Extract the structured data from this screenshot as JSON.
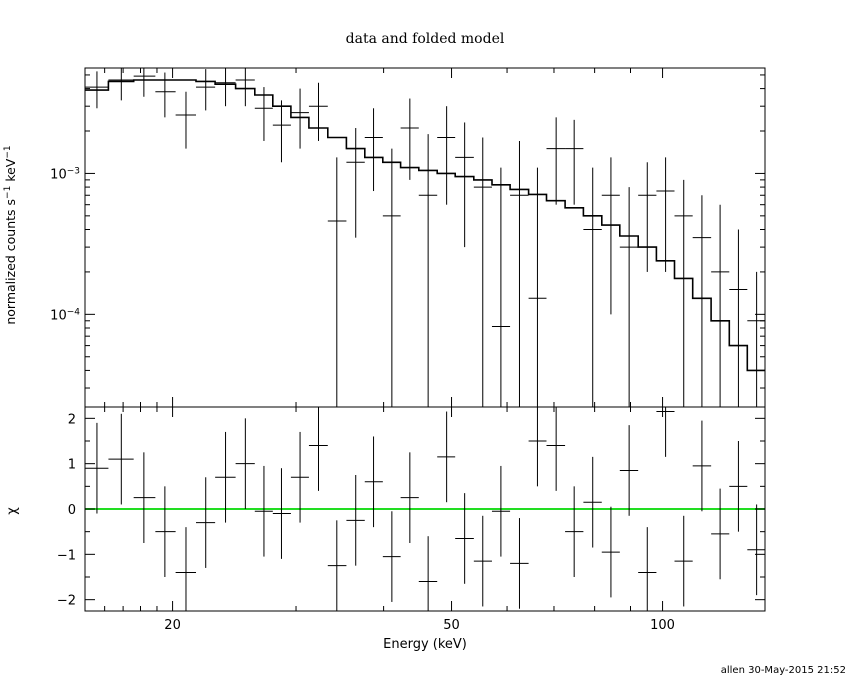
{
  "title": "data and folded model",
  "footer": "allen 30-May-2015 21:52",
  "colors": {
    "ink": "#000000",
    "zero_line": "#22dd22",
    "background": "#ffffff"
  },
  "chart_data": [
    {
      "type": "scatter",
      "panel": "top",
      "xscale": "log",
      "yscale": "log",
      "xlim": [
        15,
        140
      ],
      "ylim": [
        2.2e-05,
        0.0056
      ],
      "ylabel_parts": [
        "normalized counts s",
        "−1",
        " keV",
        "−1"
      ],
      "ytick_labels": [
        {
          "value": 0.001,
          "mant": "10",
          "exp": "−3"
        },
        {
          "value": 0.0001,
          "mant": "10",
          "exp": "−4"
        }
      ],
      "series": [
        {
          "kind": "data",
          "points": [
            {
              "x": 15.6,
              "xlo": 15.0,
              "xhi": 16.2,
              "y": 0.0041,
              "ylo": 0.0029,
              "yhi": 0.0053
            },
            {
              "x": 16.9,
              "xlo": 16.2,
              "xhi": 17.6,
              "y": 0.0046,
              "ylo": 0.0033,
              "yhi": 0.0059
            },
            {
              "x": 18.2,
              "xlo": 17.6,
              "xhi": 18.9,
              "y": 0.0049,
              "ylo": 0.0035,
              "yhi": 0.0063
            },
            {
              "x": 19.5,
              "xlo": 18.9,
              "xhi": 20.2,
              "y": 0.0038,
              "ylo": 0.0025,
              "yhi": 0.0052
            },
            {
              "x": 20.9,
              "xlo": 20.2,
              "xhi": 21.6,
              "y": 0.0026,
              "ylo": 0.0015,
              "yhi": 0.0038
            },
            {
              "x": 22.3,
              "xlo": 21.6,
              "xhi": 23.0,
              "y": 0.0041,
              "ylo": 0.0028,
              "yhi": 0.0055
            },
            {
              "x": 23.8,
              "xlo": 23.0,
              "xhi": 24.6,
              "y": 0.0044,
              "ylo": 0.003,
              "yhi": 0.0059
            },
            {
              "x": 25.4,
              "xlo": 24.6,
              "xhi": 26.2,
              "y": 0.0046,
              "ylo": 0.003,
              "yhi": 0.0063
            },
            {
              "x": 27.0,
              "xlo": 26.2,
              "xhi": 27.8,
              "y": 0.0029,
              "ylo": 0.0017,
              "yhi": 0.0041
            },
            {
              "x": 28.6,
              "xlo": 27.8,
              "xhi": 29.5,
              "y": 0.0022,
              "ylo": 0.0012,
              "yhi": 0.0033
            },
            {
              "x": 30.4,
              "xlo": 29.5,
              "xhi": 31.3,
              "y": 0.0027,
              "ylo": 0.0015,
              "yhi": 0.004
            },
            {
              "x": 32.3,
              "xlo": 31.3,
              "xhi": 33.3,
              "y": 0.003,
              "ylo": 0.0017,
              "yhi": 0.0044
            },
            {
              "x": 34.3,
              "xlo": 33.3,
              "xhi": 35.4,
              "y": 0.00046,
              "ylo": 2.2e-05,
              "yhi": 0.0013
            },
            {
              "x": 36.5,
              "xlo": 35.4,
              "xhi": 37.6,
              "y": 0.0012,
              "ylo": 0.00035,
              "yhi": 0.0021
            },
            {
              "x": 38.7,
              "xlo": 37.6,
              "xhi": 39.9,
              "y": 0.0018,
              "ylo": 0.00075,
              "yhi": 0.0029
            },
            {
              "x": 41.1,
              "xlo": 39.9,
              "xhi": 42.3,
              "y": 0.0005,
              "ylo": 2.2e-05,
              "yhi": 0.0015
            },
            {
              "x": 43.6,
              "xlo": 42.3,
              "xhi": 44.9,
              "y": 0.0021,
              "ylo": 0.0009,
              "yhi": 0.0034
            },
            {
              "x": 46.3,
              "xlo": 44.9,
              "xhi": 47.7,
              "y": 0.0007,
              "ylo": 2.2e-05,
              "yhi": 0.0019
            },
            {
              "x": 49.2,
              "xlo": 47.7,
              "xhi": 50.6,
              "y": 0.0018,
              "ylo": 0.0006,
              "yhi": 0.003
            },
            {
              "x": 52.2,
              "xlo": 50.6,
              "xhi": 53.8,
              "y": 0.0013,
              "ylo": 0.0003,
              "yhi": 0.0023
            },
            {
              "x": 55.4,
              "xlo": 53.8,
              "xhi": 57.1,
              "y": 0.0008,
              "ylo": 2.2e-05,
              "yhi": 0.0018
            },
            {
              "x": 58.8,
              "xlo": 57.1,
              "xhi": 60.6,
              "y": 8.2e-05,
              "ylo": 2.2e-05,
              "yhi": 0.0011
            },
            {
              "x": 62.5,
              "xlo": 60.6,
              "xhi": 64.4,
              "y": 0.0007,
              "ylo": 2.2e-05,
              "yhi": 0.0017
            },
            {
              "x": 66.3,
              "xlo": 64.4,
              "xhi": 68.3,
              "y": 0.00013,
              "ylo": 2.2e-05,
              "yhi": 0.0011
            },
            {
              "x": 70.5,
              "xlo": 68.3,
              "xhi": 72.6,
              "y": 0.0015,
              "ylo": 0.0006,
              "yhi": 0.0025
            },
            {
              "x": 74.8,
              "xlo": 72.6,
              "xhi": 77.1,
              "y": 0.0015,
              "ylo": 0.0006,
              "yhi": 0.0024
            },
            {
              "x": 79.5,
              "xlo": 77.1,
              "xhi": 81.9,
              "y": 0.0004,
              "ylo": 2.2e-05,
              "yhi": 0.0011
            },
            {
              "x": 84.4,
              "xlo": 81.9,
              "xhi": 86.9,
              "y": 0.0007,
              "ylo": 0.0001,
              "yhi": 0.0013
            },
            {
              "x": 89.6,
              "xlo": 86.9,
              "xhi": 92.3,
              "y": 0.0003,
              "ylo": 2.2e-05,
              "yhi": 0.0008
            },
            {
              "x": 95.1,
              "xlo": 92.3,
              "xhi": 98.0,
              "y": 0.0007,
              "ylo": 0.0002,
              "yhi": 0.0012
            },
            {
              "x": 101.0,
              "xlo": 98.0,
              "xhi": 104.0,
              "y": 0.00075,
              "ylo": 0.0002,
              "yhi": 0.0013
            },
            {
              "x": 107.2,
              "xlo": 104.0,
              "xhi": 110.4,
              "y": 0.0005,
              "ylo": 2.2e-05,
              "yhi": 0.0009
            },
            {
              "x": 113.8,
              "xlo": 110.4,
              "xhi": 117.3,
              "y": 0.00035,
              "ylo": 2.2e-05,
              "yhi": 0.0007
            },
            {
              "x": 120.8,
              "xlo": 117.3,
              "xhi": 124.5,
              "y": 0.0002,
              "ylo": 2.2e-05,
              "yhi": 0.0006
            },
            {
              "x": 128.3,
              "xlo": 124.5,
              "xhi": 132.1,
              "y": 0.00015,
              "ylo": 2.2e-05,
              "yhi": 0.0004
            },
            {
              "x": 136.2,
              "xlo": 132.1,
              "xhi": 140.0,
              "y": 9e-05,
              "ylo": 2.2e-05,
              "yhi": 0.0002
            }
          ]
        },
        {
          "kind": "model",
          "points": [
            {
              "x": 15.0,
              "y": 0.0039
            },
            {
              "x": 16.2,
              "y": 0.0045
            },
            {
              "x": 17.6,
              "y": 0.0046
            },
            {
              "x": 18.9,
              "y": 0.0046
            },
            {
              "x": 20.2,
              "y": 0.0046
            },
            {
              "x": 21.6,
              "y": 0.0045
            },
            {
              "x": 23.0,
              "y": 0.0043
            },
            {
              "x": 24.6,
              "y": 0.004
            },
            {
              "x": 26.2,
              "y": 0.0036
            },
            {
              "x": 27.8,
              "y": 0.003
            },
            {
              "x": 29.5,
              "y": 0.0025
            },
            {
              "x": 31.3,
              "y": 0.0021
            },
            {
              "x": 33.3,
              "y": 0.0018
            },
            {
              "x": 35.4,
              "y": 0.0015
            },
            {
              "x": 37.6,
              "y": 0.0013
            },
            {
              "x": 39.9,
              "y": 0.0012
            },
            {
              "x": 42.3,
              "y": 0.0011
            },
            {
              "x": 44.9,
              "y": 0.00105
            },
            {
              "x": 47.7,
              "y": 0.001
            },
            {
              "x": 50.6,
              "y": 0.00095
            },
            {
              "x": 53.8,
              "y": 0.0009
            },
            {
              "x": 57.1,
              "y": 0.00083
            },
            {
              "x": 60.6,
              "y": 0.00077
            },
            {
              "x": 64.4,
              "y": 0.00071
            },
            {
              "x": 68.3,
              "y": 0.00064
            },
            {
              "x": 72.6,
              "y": 0.00057
            },
            {
              "x": 77.1,
              "y": 0.0005
            },
            {
              "x": 81.9,
              "y": 0.00043
            },
            {
              "x": 86.9,
              "y": 0.00036
            },
            {
              "x": 92.3,
              "y": 0.0003
            },
            {
              "x": 98.0,
              "y": 0.00024
            },
            {
              "x": 104.0,
              "y": 0.00018
            },
            {
              "x": 110.4,
              "y": 0.00013
            },
            {
              "x": 117.3,
              "y": 9e-05
            },
            {
              "x": 124.5,
              "y": 6e-05
            },
            {
              "x": 132.1,
              "y": 4e-05
            },
            {
              "x": 140.0,
              "y": 2.5e-05
            }
          ]
        }
      ]
    },
    {
      "type": "scatter",
      "panel": "bottom",
      "xscale": "log",
      "yscale": "linear",
      "xlim": [
        15,
        140
      ],
      "ylim": [
        -2.25,
        2.25
      ],
      "xlabel": "Energy (keV)",
      "ylabel": "χ",
      "xtick_labels": [
        {
          "value": 20,
          "label": "20"
        },
        {
          "value": 50,
          "label": "50"
        },
        {
          "value": 100,
          "label": "100"
        }
      ],
      "ytick_labels": [
        {
          "value": 2,
          "label": "2"
        },
        {
          "value": 1,
          "label": "1"
        },
        {
          "value": 0,
          "label": "0"
        },
        {
          "value": -1,
          "label": "−1"
        },
        {
          "value": -2,
          "label": "−2"
        }
      ],
      "reference_line": {
        "y": 0
      },
      "series": [
        {
          "kind": "residuals",
          "points": [
            {
              "x": 15.6,
              "xlo": 15.0,
              "xhi": 16.2,
              "y": 0.9
            },
            {
              "x": 16.9,
              "xlo": 16.2,
              "xhi": 17.6,
              "y": 1.1
            },
            {
              "x": 18.2,
              "xlo": 17.6,
              "xhi": 18.9,
              "y": 0.25
            },
            {
              "x": 19.5,
              "xlo": 18.9,
              "xhi": 20.2,
              "y": -0.5
            },
            {
              "x": 20.9,
              "xlo": 20.2,
              "xhi": 21.6,
              "y": -1.4
            },
            {
              "x": 22.3,
              "xlo": 21.6,
              "xhi": 23.0,
              "y": -0.3
            },
            {
              "x": 23.8,
              "xlo": 23.0,
              "xhi": 24.6,
              "y": 0.7
            },
            {
              "x": 25.4,
              "xlo": 24.6,
              "xhi": 26.2,
              "y": 1.0
            },
            {
              "x": 27.0,
              "xlo": 26.2,
              "xhi": 27.8,
              "y": -0.05
            },
            {
              "x": 28.6,
              "xlo": 27.8,
              "xhi": 29.5,
              "y": -0.1
            },
            {
              "x": 30.4,
              "xlo": 29.5,
              "xhi": 31.3,
              "y": 0.7
            },
            {
              "x": 32.3,
              "xlo": 31.3,
              "xhi": 33.3,
              "y": 1.4
            },
            {
              "x": 34.3,
              "xlo": 33.3,
              "xhi": 35.4,
              "y": -1.25
            },
            {
              "x": 36.5,
              "xlo": 35.4,
              "xhi": 37.6,
              "y": -0.25
            },
            {
              "x": 38.7,
              "xlo": 37.6,
              "xhi": 39.9,
              "y": 0.6
            },
            {
              "x": 41.1,
              "xlo": 39.9,
              "xhi": 42.3,
              "y": -1.05
            },
            {
              "x": 43.6,
              "xlo": 42.3,
              "xhi": 44.9,
              "y": 0.25
            },
            {
              "x": 46.3,
              "xlo": 44.9,
              "xhi": 47.7,
              "y": -1.6
            },
            {
              "x": 49.2,
              "xlo": 47.7,
              "xhi": 50.6,
              "y": 1.15
            },
            {
              "x": 52.2,
              "xlo": 50.6,
              "xhi": 53.8,
              "y": -0.65
            },
            {
              "x": 55.4,
              "xlo": 53.8,
              "xhi": 57.1,
              "y": -1.15
            },
            {
              "x": 58.8,
              "xlo": 57.1,
              "xhi": 60.6,
              "y": -0.05
            },
            {
              "x": 62.5,
              "xlo": 60.6,
              "xhi": 64.4,
              "y": -1.2
            },
            {
              "x": 66.3,
              "xlo": 64.4,
              "xhi": 68.3,
              "y": 1.5
            },
            {
              "x": 70.5,
              "xlo": 68.3,
              "xhi": 72.6,
              "y": 1.4
            },
            {
              "x": 74.8,
              "xlo": 72.6,
              "xhi": 77.1,
              "y": -0.5
            },
            {
              "x": 79.5,
              "xlo": 77.1,
              "xhi": 81.9,
              "y": 0.15
            },
            {
              "x": 84.4,
              "xlo": 81.9,
              "xhi": 86.9,
              "y": -0.95
            },
            {
              "x": 89.6,
              "xlo": 86.9,
              "xhi": 92.3,
              "y": 0.85
            },
            {
              "x": 95.1,
              "xlo": 92.3,
              "xhi": 98.0,
              "y": -1.4
            },
            {
              "x": 101.0,
              "xlo": 98.0,
              "xhi": 104.0,
              "y": 2.15
            },
            {
              "x": 107.2,
              "xlo": 104.0,
              "xhi": 110.4,
              "y": -1.15
            },
            {
              "x": 113.8,
              "xlo": 110.4,
              "xhi": 117.3,
              "y": 0.95
            },
            {
              "x": 120.8,
              "xlo": 117.3,
              "xhi": 124.5,
              "y": -0.55
            },
            {
              "x": 128.3,
              "xlo": 124.5,
              "xhi": 132.1,
              "y": 0.5
            },
            {
              "x": 136.2,
              "xlo": 132.1,
              "xhi": 140.0,
              "y": -0.9
            }
          ]
        }
      ]
    }
  ]
}
